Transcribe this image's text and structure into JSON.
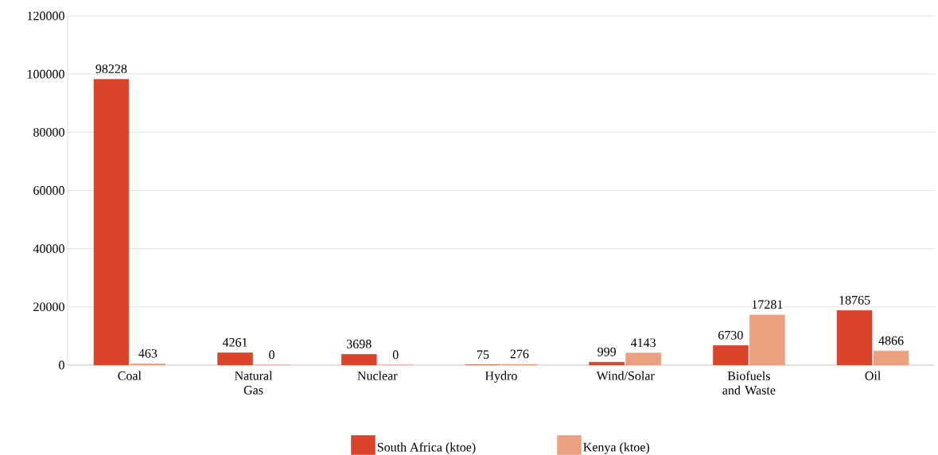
{
  "chart_data": {
    "type": "bar",
    "categories": [
      "Coal",
      "Natural Gas",
      "Nuclear",
      "Hydro",
      "Wind/Solar",
      "Biofuels and Waste",
      "Oil"
    ],
    "series": [
      {
        "name": "South Africa (ktoe)",
        "color": "#d9442b",
        "values": [
          98228,
          4261,
          3698,
          75,
          999,
          6730,
          18765
        ]
      },
      {
        "name": "Kenya (ktoe)",
        "color": "#eba080",
        "values": [
          463,
          0,
          0,
          276,
          4143,
          17281,
          4866
        ]
      }
    ],
    "ylim": [
      0,
      120000
    ],
    "yticks": [
      0,
      20000,
      40000,
      60000,
      80000,
      100000,
      120000
    ],
    "grid": "y",
    "legend": "bottom",
    "data_labels": true
  }
}
